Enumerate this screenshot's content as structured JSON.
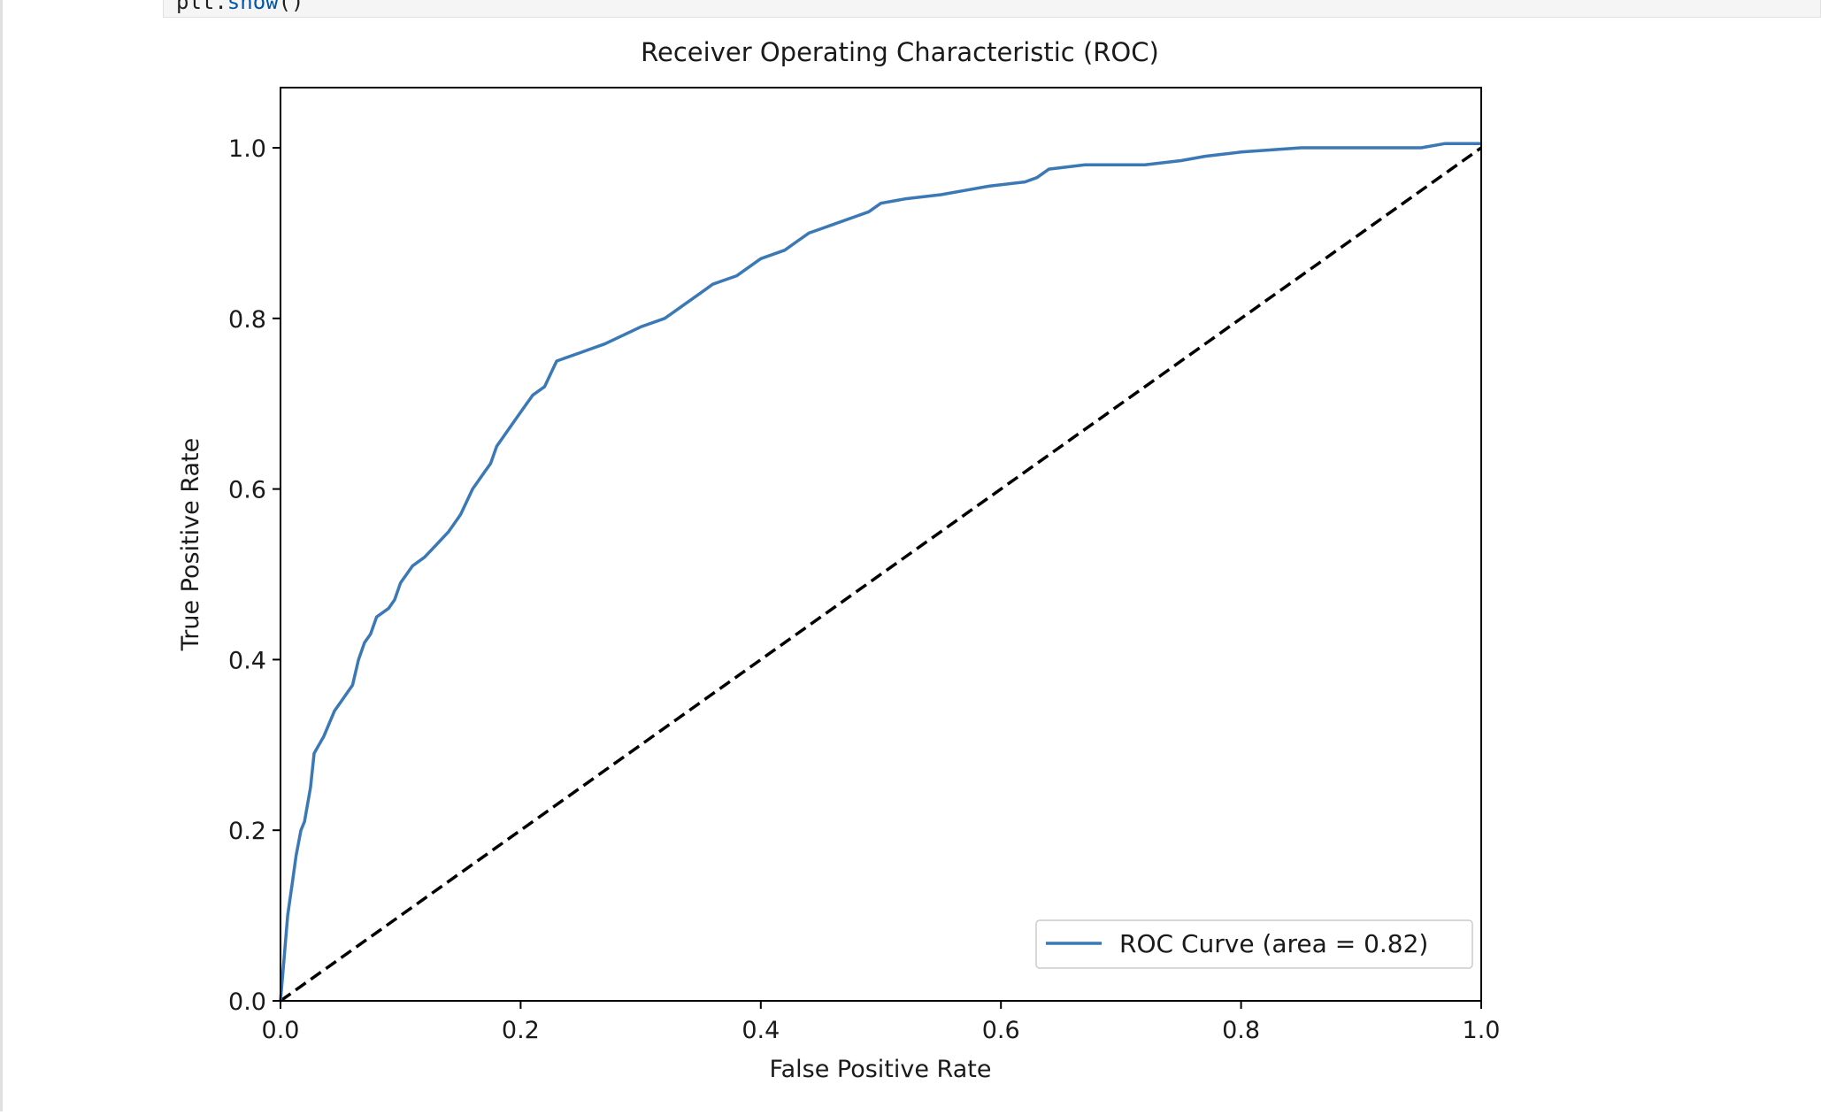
{
  "code_cell": {
    "prefix": "plt.",
    "function": "show",
    "suffix": "()"
  },
  "chart_data": {
    "type": "line",
    "title": "Receiver Operating Characteristic (ROC)",
    "xlabel": "False Positive Rate",
    "ylabel": "True Positive Rate",
    "xlim": [
      0,
      1
    ],
    "ylim": [
      0,
      1.05
    ],
    "x_ticks": [
      "0.0",
      "0.2",
      "0.4",
      "0.6",
      "0.8",
      "1.0"
    ],
    "y_ticks": [
      "0.0",
      "0.2",
      "0.4",
      "0.6",
      "0.8",
      "1.0"
    ],
    "grid": false,
    "legend_location": "lower right",
    "series": [
      {
        "name": "ROC Curve (area = 0.82)",
        "color": "#3a78b6",
        "style": "solid",
        "x": [
          0.0,
          0.003,
          0.006,
          0.01,
          0.013,
          0.017,
          0.02,
          0.025,
          0.028,
          0.032,
          0.036,
          0.045,
          0.05,
          0.055,
          0.06,
          0.065,
          0.07,
          0.075,
          0.08,
          0.09,
          0.095,
          0.1,
          0.105,
          0.11,
          0.12,
          0.13,
          0.14,
          0.15,
          0.16,
          0.17,
          0.175,
          0.18,
          0.19,
          0.2,
          0.21,
          0.22,
          0.23,
          0.25,
          0.26,
          0.27,
          0.3,
          0.32,
          0.33,
          0.35,
          0.36,
          0.37,
          0.38,
          0.4,
          0.42,
          0.43,
          0.44,
          0.45,
          0.46,
          0.48,
          0.49,
          0.5,
          0.52,
          0.55,
          0.57,
          0.59,
          0.62,
          0.63,
          0.64,
          0.67,
          0.7,
          0.72,
          0.75,
          0.77,
          0.8,
          0.85,
          0.9,
          0.95,
          0.97,
          1.0
        ],
        "y": [
          0.0,
          0.05,
          0.1,
          0.14,
          0.17,
          0.2,
          0.21,
          0.25,
          0.29,
          0.3,
          0.31,
          0.34,
          0.35,
          0.36,
          0.37,
          0.4,
          0.42,
          0.43,
          0.45,
          0.46,
          0.47,
          0.49,
          0.5,
          0.51,
          0.52,
          0.535,
          0.55,
          0.57,
          0.6,
          0.62,
          0.63,
          0.65,
          0.67,
          0.69,
          0.71,
          0.72,
          0.75,
          0.76,
          0.765,
          0.77,
          0.79,
          0.8,
          0.81,
          0.83,
          0.84,
          0.845,
          0.85,
          0.87,
          0.88,
          0.89,
          0.9,
          0.905,
          0.91,
          0.92,
          0.925,
          0.935,
          0.94,
          0.945,
          0.95,
          0.955,
          0.96,
          0.965,
          0.975,
          0.98,
          0.98,
          0.98,
          0.985,
          0.99,
          0.995,
          1.0,
          1.0,
          1.0,
          1.005,
          1.005
        ]
      },
      {
        "name": "",
        "color": "#000000",
        "style": "dashed",
        "x": [
          0,
          1
        ],
        "y": [
          0,
          1
        ]
      }
    ]
  }
}
